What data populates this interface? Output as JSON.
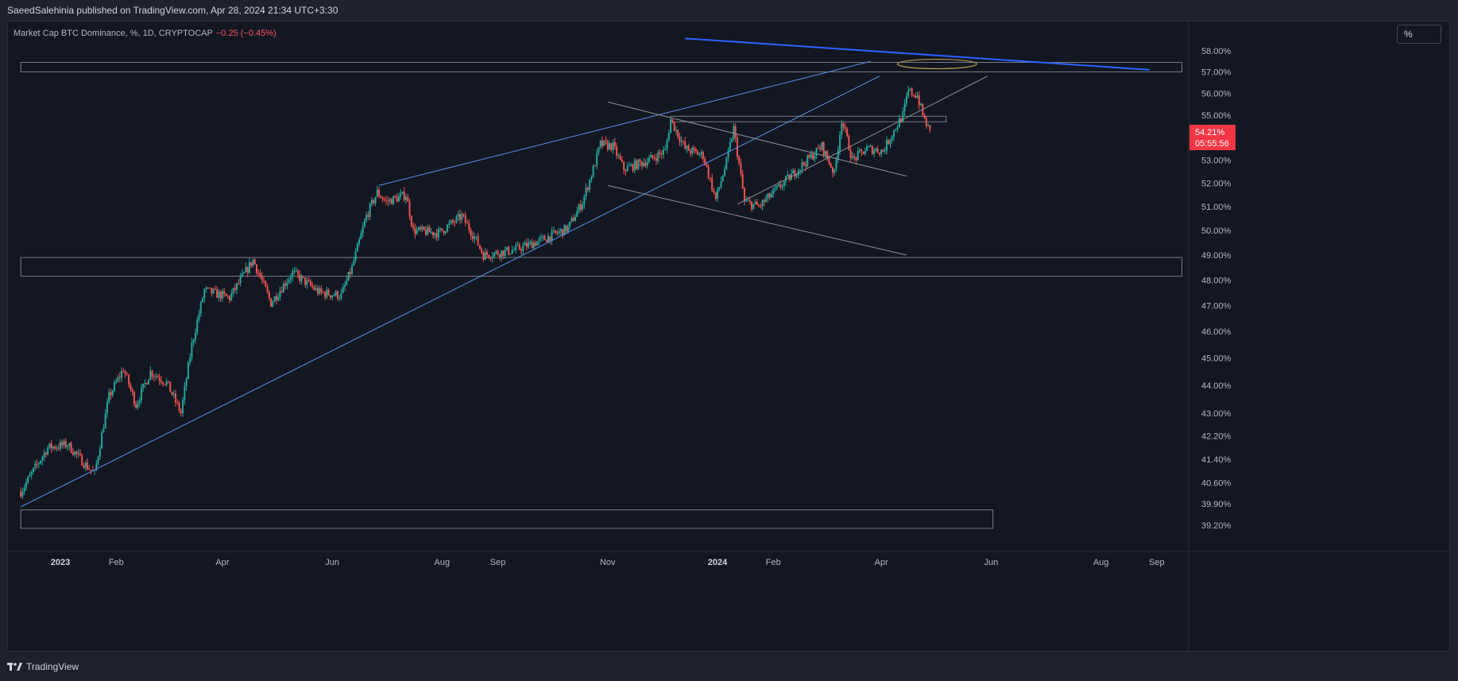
{
  "header": {
    "publisher": "SaeedSalehinia published on TradingView.com, Apr 28, 2024 21:34 UTC+3:30"
  },
  "legend": {
    "symbol": "Market Cap BTC Dominance, %, 1D, CRYPTOCAP",
    "change": "−0.25 (−0.45%)"
  },
  "toolbar": {
    "scale_button": "%"
  },
  "footer": {
    "brand": "TradingView"
  },
  "price_badge": {
    "value": "54.21%",
    "countdown": "05:55:56",
    "color": "#f23645"
  },
  "colors": {
    "up": "#26a69a",
    "down": "#ef5350",
    "trendline": "#5b8def",
    "zone": "#787b86",
    "ellipse": "#b29a4a",
    "resistance": "#2962ff"
  },
  "chart_data": {
    "type": "candlestick",
    "title": "Market Cap BTC Dominance, %, 1D, CRYPTOCAP",
    "x_ticks": [
      {
        "label": "2023",
        "date": "2023-01-01",
        "bold": true
      },
      {
        "label": "Feb",
        "date": "2023-02-01"
      },
      {
        "label": "Apr",
        "date": "2023-04-01"
      },
      {
        "label": "Jun",
        "date": "2023-06-01"
      },
      {
        "label": "Aug",
        "date": "2023-08-01"
      },
      {
        "label": "Sep",
        "date": "2023-09-01"
      },
      {
        "label": "Nov",
        "date": "2023-11-01"
      },
      {
        "label": "2024",
        "date": "2024-01-01",
        "bold": true
      },
      {
        "label": "Feb",
        "date": "2024-02-01"
      },
      {
        "label": "Apr",
        "date": "2024-04-01"
      },
      {
        "label": "Jun",
        "date": "2024-06-01"
      },
      {
        "label": "Aug",
        "date": "2024-08-01"
      },
      {
        "label": "Sep",
        "date": "2024-09-01"
      }
    ],
    "y_ticks": [
      "58.00%",
      "57.00%",
      "56.00%",
      "55.00%",
      "53.00%",
      "52.00%",
      "51.00%",
      "50.00%",
      "49.00%",
      "48.00%",
      "47.00%",
      "46.00%",
      "45.00%",
      "44.00%",
      "43.00%",
      "42.20%",
      "41.40%",
      "40.60%",
      "39.90%",
      "39.20%"
    ],
    "y_axis": "log scale, percent",
    "last_value": 54.21,
    "close_path": [
      [
        "2022-12-10",
        40.3
      ],
      [
        "2022-12-25",
        41.8
      ],
      [
        "2023-01-05",
        41.9
      ],
      [
        "2023-01-15",
        41.2
      ],
      [
        "2023-01-20",
        40.9
      ],
      [
        "2023-01-28",
        43.6
      ],
      [
        "2023-02-05",
        44.6
      ],
      [
        "2023-02-12",
        43.3
      ],
      [
        "2023-02-20",
        44.5
      ],
      [
        "2023-03-01",
        44.1
      ],
      [
        "2023-03-09",
        43.0
      ],
      [
        "2023-03-15",
        45.5
      ],
      [
        "2023-03-22",
        47.6
      ],
      [
        "2023-04-05",
        47.3
      ],
      [
        "2023-04-18",
        48.8
      ],
      [
        "2023-04-28",
        47.1
      ],
      [
        "2023-05-10",
        48.3
      ],
      [
        "2023-05-25",
        47.5
      ],
      [
        "2023-06-06",
        47.4
      ],
      [
        "2023-06-12",
        48.5
      ],
      [
        "2023-06-20",
        50.6
      ],
      [
        "2023-06-26",
        51.6
      ],
      [
        "2023-07-01",
        51.2
      ],
      [
        "2023-07-12",
        51.5
      ],
      [
        "2023-07-16",
        50.0
      ],
      [
        "2023-07-30",
        49.9
      ],
      [
        "2023-08-12",
        50.6
      ],
      [
        "2023-08-20",
        49.6
      ],
      [
        "2023-08-24",
        49.0
      ],
      [
        "2023-09-10",
        49.2
      ],
      [
        "2023-09-25",
        49.6
      ],
      [
        "2023-10-10",
        50.1
      ],
      [
        "2023-10-18",
        51.2
      ],
      [
        "2023-10-24",
        52.6
      ],
      [
        "2023-10-28",
        53.7
      ],
      [
        "2023-11-04",
        53.6
      ],
      [
        "2023-11-10",
        52.6
      ],
      [
        "2023-11-24",
        53.0
      ],
      [
        "2023-12-03",
        53.4
      ],
      [
        "2023-12-06",
        54.8
      ],
      [
        "2023-12-14",
        53.5
      ],
      [
        "2023-12-24",
        53.2
      ],
      [
        "2023-12-31",
        51.3
      ],
      [
        "2024-01-06",
        52.9
      ],
      [
        "2024-01-10",
        54.4
      ],
      [
        "2024-01-16",
        51.2
      ],
      [
        "2024-01-24",
        51.0
      ],
      [
        "2024-02-04",
        51.8
      ],
      [
        "2024-02-16",
        52.7
      ],
      [
        "2024-02-28",
        53.6
      ],
      [
        "2024-03-06",
        52.4
      ],
      [
        "2024-03-10",
        54.8
      ],
      [
        "2024-03-16",
        53.0
      ],
      [
        "2024-03-24",
        53.5
      ],
      [
        "2024-04-02",
        53.4
      ],
      [
        "2024-04-08",
        54.3
      ],
      [
        "2024-04-13",
        55.0
      ],
      [
        "2024-04-16",
        56.1
      ],
      [
        "2024-04-21",
        55.9
      ],
      [
        "2024-04-24",
        55.0
      ],
      [
        "2024-04-28",
        54.21
      ]
    ],
    "annotations": [
      {
        "kind": "ellipse",
        "x": [
          "2024-04-10",
          "2024-05-24"
        ],
        "y": [
          57.15,
          57.6
        ]
      },
      {
        "kind": "line",
        "from": [
          "2023-12-14",
          58.6
        ],
        "to": [
          "2024-08-28",
          57.1
        ]
      },
      {
        "kind": "rect",
        "x": [
          "2022-12-10",
          "2024-09-15"
        ],
        "y": [
          57.0,
          57.45
        ]
      },
      {
        "kind": "rect",
        "x": [
          "2022-12-10",
          "2024-09-15"
        ],
        "y": [
          48.15,
          48.9
        ]
      },
      {
        "kind": "rect",
        "x": [
          "2022-12-10",
          "2024-06-02"
        ],
        "y": [
          39.1,
          39.7
        ]
      },
      {
        "kind": "rect",
        "x": [
          "2023-12-06",
          "2024-05-07"
        ],
        "y": [
          54.7,
          54.95
        ]
      },
      {
        "kind": "line",
        "from": [
          "2022-12-10",
          39.8
        ],
        "to": [
          "2024-03-31",
          56.8
        ]
      },
      {
        "kind": "line",
        "from": [
          "2023-06-27",
          51.9
        ],
        "to": [
          "2024-03-26",
          57.5
        ]
      },
      {
        "kind": "line",
        "from": [
          "2023-11-01",
          55.6
        ],
        "to": [
          "2024-04-15",
          52.3
        ]
      },
      {
        "kind": "line",
        "from": [
          "2023-11-01",
          51.9
        ],
        "to": [
          "2024-04-15",
          49.0
        ]
      },
      {
        "kind": "line",
        "from": [
          "2024-01-12",
          51.1
        ],
        "to": [
          "2024-05-30",
          56.8
        ]
      }
    ]
  }
}
